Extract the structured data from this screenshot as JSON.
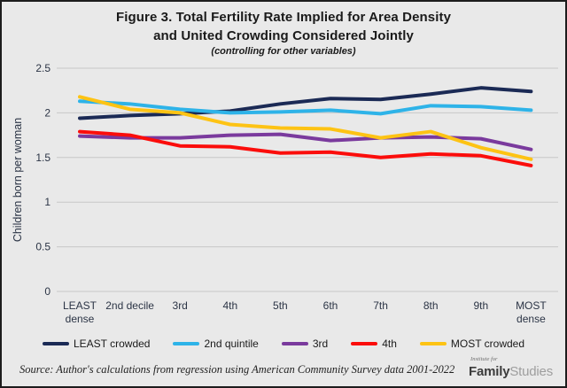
{
  "header": {
    "title_line1": "Figure 3. Total Fertility Rate Implied for Area Density",
    "title_line2": "and United Crowding Considered Jointly",
    "subtitle": "(controlling for other variables)"
  },
  "chart_data": {
    "type": "line",
    "title": "Figure 3. Total Fertility Rate Implied for Area Density and United Crowding Considered Jointly",
    "subtitle": "(controlling for other variables)",
    "xlabel": "",
    "ylabel": "Children born per woman",
    "ylim": [
      0,
      2.5
    ],
    "yticks": [
      0,
      0.5,
      1,
      1.5,
      2,
      2.5
    ],
    "grid": true,
    "legend_position": "bottom",
    "background_color": "#e9e9e9",
    "gridline_color": "#c8c8c8",
    "axis_text_color": "#2b3445",
    "categories": [
      "LEAST\ndense",
      "2nd decile",
      "3rd",
      "4th",
      "5th",
      "6th",
      "7th",
      "8th",
      "9th",
      "MOST\ndense"
    ],
    "series": [
      {
        "name": "LEAST crowded",
        "color": "#1b2a55",
        "values": [
          1.94,
          1.97,
          1.99,
          2.02,
          2.1,
          2.16,
          2.15,
          2.21,
          2.28,
          2.24
        ]
      },
      {
        "name": "2nd quintile",
        "color": "#2eb3e8",
        "values": [
          2.13,
          2.1,
          2.04,
          2.0,
          2.01,
          2.03,
          1.99,
          2.08,
          2.07,
          2.03
        ]
      },
      {
        "name": "3rd",
        "color": "#7a3a9d",
        "values": [
          1.74,
          1.72,
          1.72,
          1.75,
          1.76,
          1.69,
          1.72,
          1.73,
          1.71,
          1.59
        ]
      },
      {
        "name": "4th",
        "color": "#fb0d0b",
        "values": [
          1.79,
          1.75,
          1.63,
          1.62,
          1.55,
          1.56,
          1.5,
          1.54,
          1.52,
          1.41
        ]
      },
      {
        "name": "MOST crowded",
        "color": "#fdc314",
        "values": [
          2.18,
          2.04,
          2.0,
          1.87,
          1.83,
          1.82,
          1.72,
          1.79,
          1.61,
          1.48
        ]
      }
    ]
  },
  "footer": {
    "source": "Source: Author's calculations from regression using American Community Survey data 2001-2022",
    "logo": {
      "top": "Institute for",
      "bold": "Family",
      "light": "Studies"
    }
  }
}
